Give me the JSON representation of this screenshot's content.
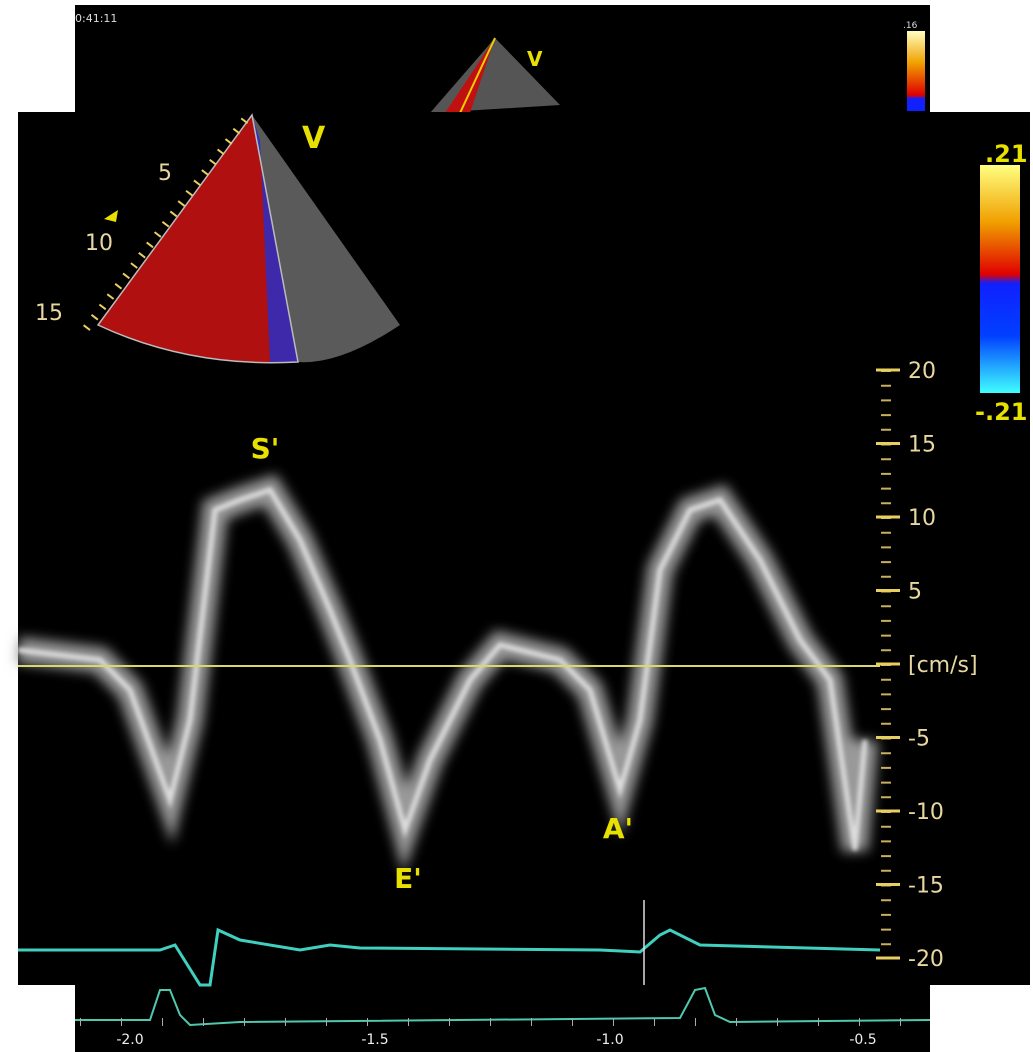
{
  "back_panel": {
    "timestamp": "0:41:11",
    "scale_max": ".16",
    "view_label": "V",
    "time_axis": [
      "-2.0",
      "-1.5",
      "-1.0",
      "-0.5"
    ]
  },
  "front_panel": {
    "view_label": "V",
    "depth_labels": [
      "5",
      "10",
      "15"
    ],
    "color_scale": {
      "max": ".21",
      "min": "-.21"
    },
    "velocity_scale": [
      "20",
      "15",
      "10",
      "5",
      "[cm/s]",
      "-5",
      "-10",
      "-15",
      "-20"
    ],
    "annotations": [
      "S'",
      "E'",
      "A'"
    ]
  }
}
